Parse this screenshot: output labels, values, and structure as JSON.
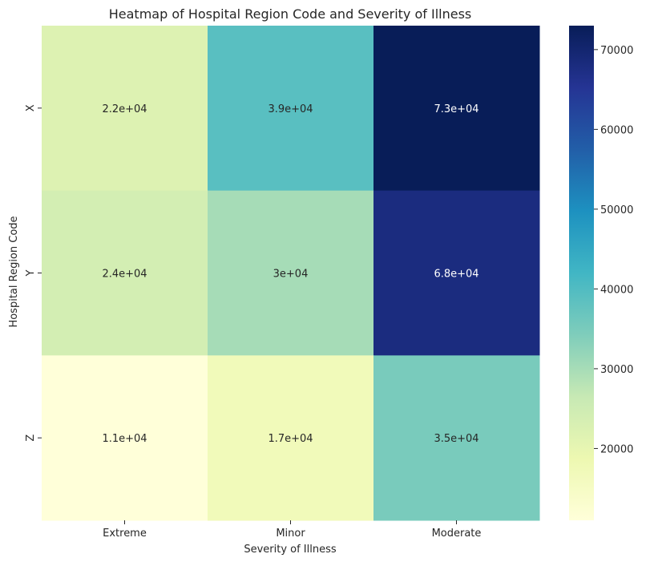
{
  "chart_data": {
    "type": "heatmap",
    "title": "Heatmap of Hospital Region Code and Severity of Illness",
    "xlabel": "Severity of Illness",
    "ylabel": "Hospital Region Code",
    "x_categories": [
      "Extreme",
      "Minor",
      "Moderate"
    ],
    "y_categories": [
      "X",
      "Y",
      "Z"
    ],
    "values": [
      [
        22000,
        39000,
        73000
      ],
      [
        24000,
        30000,
        68000
      ],
      [
        11000,
        17000,
        35000
      ]
    ],
    "cell_labels": [
      [
        "2.2e+04",
        "3.9e+04",
        "7.3e+04"
      ],
      [
        "2.4e+04",
        "3e+04",
        "6.8e+04"
      ],
      [
        "1.1e+04",
        "1.7e+04",
        "3.5e+04"
      ]
    ],
    "colormap": "YlGnBu",
    "vmin": 11000,
    "vmax": 73000,
    "colorbar_ticks": [
      20000,
      30000,
      40000,
      50000,
      60000,
      70000
    ],
    "colorbar_tick_labels": [
      "20000",
      "30000",
      "40000",
      "50000",
      "60000",
      "70000"
    ]
  }
}
